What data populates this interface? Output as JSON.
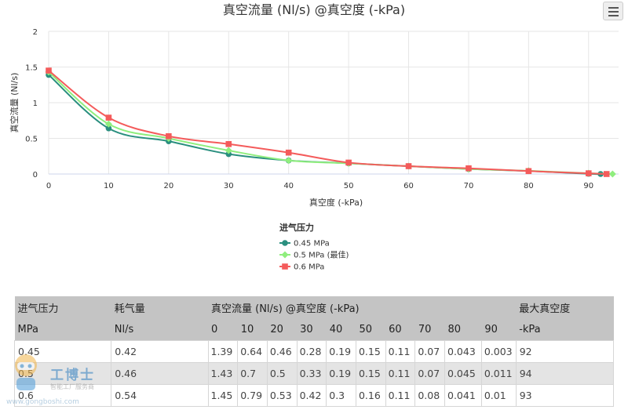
{
  "chart_data": {
    "type": "line",
    "title": "真空流量 (Nl/s) @真空度 (-kPa)",
    "xlabel": "真空度 (-kPa)",
    "ylabel": "真空流量 (Nl/s)",
    "xlim": [
      0,
      95
    ],
    "ylim": [
      0,
      2
    ],
    "x_ticks": [
      0,
      10,
      20,
      30,
      40,
      50,
      60,
      70,
      80,
      90
    ],
    "y_ticks": [
      0,
      0.5,
      1,
      1.5,
      2
    ],
    "grid": true,
    "legend_title": "进气压力",
    "legend_position": "bottom-center",
    "series": [
      {
        "name": "0.45 MPa",
        "color": "#2a8f7f",
        "marker": "circle",
        "x": [
          0,
          10,
          20,
          30,
          40,
          50,
          60,
          70,
          80,
          90,
          92
        ],
        "y": [
          1.39,
          0.64,
          0.46,
          0.28,
          0.19,
          0.15,
          0.11,
          0.07,
          0.043,
          0.003,
          0
        ]
      },
      {
        "name": "0.5 MPa (最佳)",
        "color": "#90ee7e",
        "marker": "diamond",
        "x": [
          0,
          10,
          20,
          30,
          40,
          50,
          60,
          70,
          80,
          90,
          94
        ],
        "y": [
          1.43,
          0.7,
          0.5,
          0.33,
          0.19,
          0.15,
          0.11,
          0.07,
          0.045,
          0.011,
          0
        ]
      },
      {
        "name": "0.6 MPa",
        "color": "#f45b5b",
        "marker": "square",
        "x": [
          0,
          10,
          20,
          30,
          40,
          50,
          60,
          70,
          80,
          90,
          93
        ],
        "y": [
          1.45,
          0.79,
          0.53,
          0.42,
          0.3,
          0.16,
          0.11,
          0.08,
          0.041,
          0.01,
          0
        ]
      }
    ]
  },
  "table": {
    "header1": [
      "进气压力",
      "耗气量",
      "真空流量 (Nl/s) @真空度 (-kPa)",
      "最大真空度"
    ],
    "header2": [
      "MPa",
      "Nl/s",
      "0",
      "10",
      "20",
      "30",
      "40",
      "50",
      "60",
      "70",
      "80",
      "90",
      "-kPa"
    ],
    "rows": [
      [
        "0.45",
        "0.42",
        "1.39",
        "0.64",
        "0.46",
        "0.28",
        "0.19",
        "0.15",
        "0.11",
        "0.07",
        "0.043",
        "0.003",
        "92"
      ],
      [
        "0.5",
        "0.46",
        "1.43",
        "0.7",
        "0.5",
        "0.33",
        "0.19",
        "0.15",
        "0.11",
        "0.07",
        "0.045",
        "0.011",
        "94"
      ],
      [
        "0.6",
        "0.54",
        "1.45",
        "0.79",
        "0.53",
        "0.42",
        "0.3",
        "0.16",
        "0.11",
        "0.08",
        "0.041",
        "0.01",
        "93"
      ]
    ]
  },
  "watermark": {
    "name": "工博士",
    "tagline": "智能工厂服务商",
    "url": "www.gongboshi.com"
  },
  "menu": {
    "icon": "hamburger-menu-icon"
  }
}
